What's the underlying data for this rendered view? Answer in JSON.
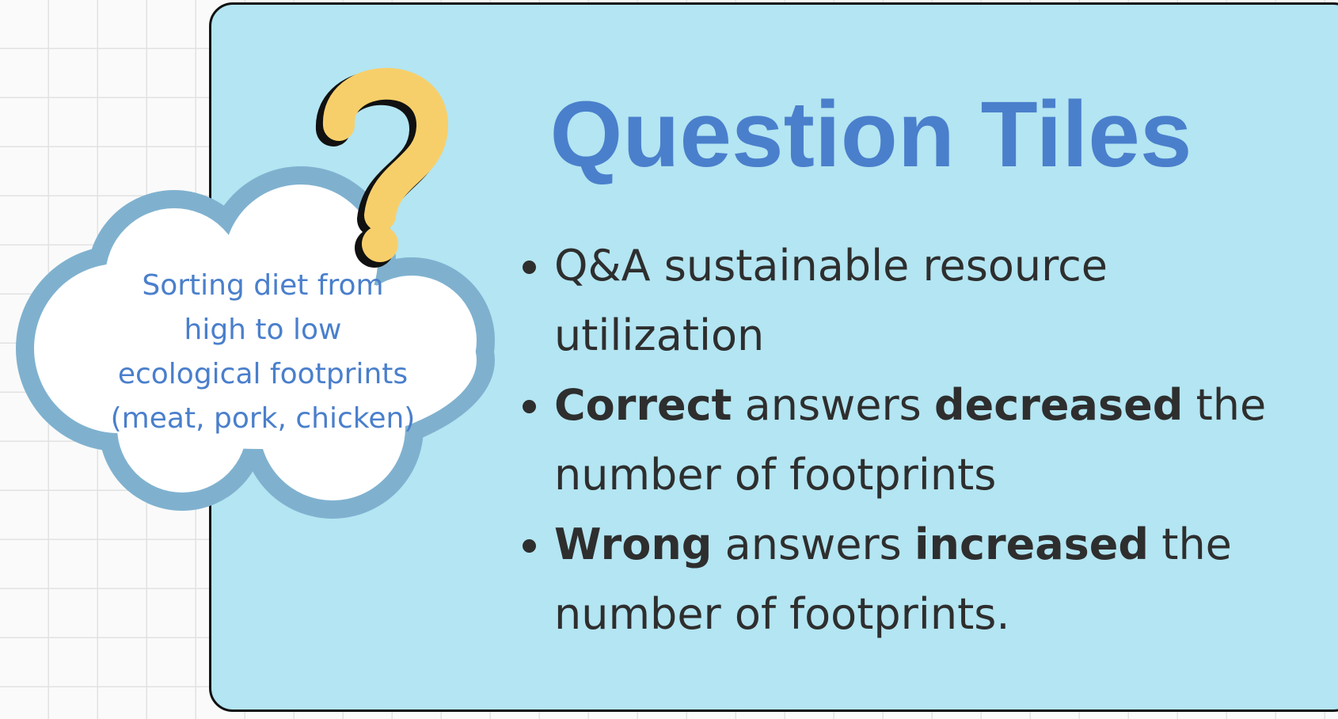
{
  "title": "Question Tiles",
  "bullets": [
    {
      "segments": [
        {
          "text": "Q&A sustainable resource utilization",
          "bold": false
        }
      ]
    },
    {
      "segments": [
        {
          "text": "Correct",
          "bold": true
        },
        {
          "text": "answers",
          "bold": false
        },
        {
          "text": "decreased",
          "bold": true
        },
        {
          "text": "the number of footprints",
          "bold": false
        }
      ]
    },
    {
      "segments": [
        {
          "text": "Wrong",
          "bold": true
        },
        {
          "text": "answers",
          "bold": false
        },
        {
          "text": "increased",
          "bold": true
        },
        {
          "text": "the number of footprints.",
          "bold": false
        }
      ]
    }
  ],
  "cloud": {
    "lines": [
      "Sorting diet from",
      "high to low",
      "ecological footprints",
      "(meat, pork, chicken)"
    ]
  }
}
